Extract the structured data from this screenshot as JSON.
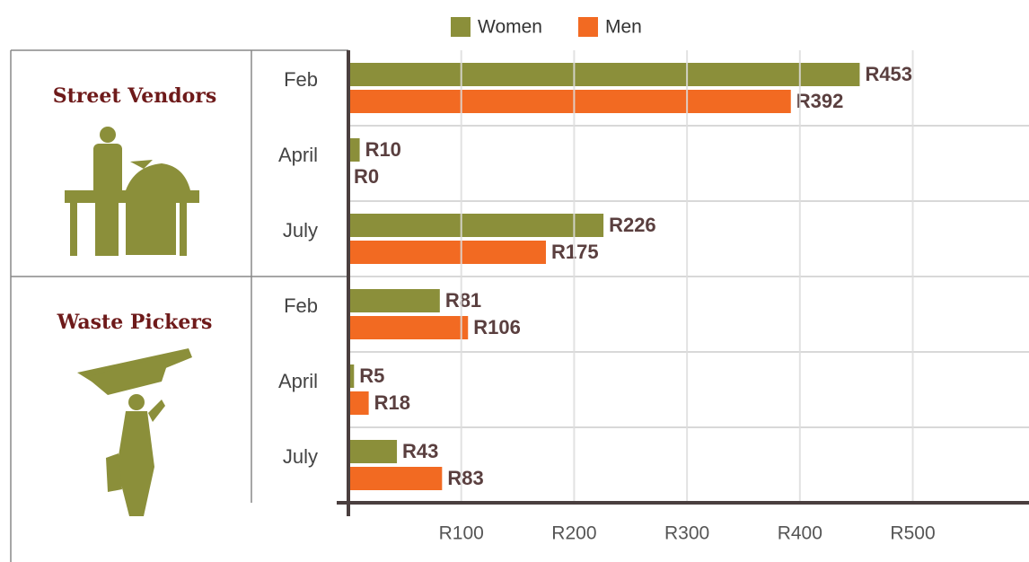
{
  "chart_data": {
    "type": "bar",
    "orientation": "horizontal",
    "groups": [
      {
        "name": "Street Vendors",
        "categories": [
          "Feb",
          "April",
          "July"
        ]
      },
      {
        "name": "Waste Pickers",
        "categories": [
          "Feb",
          "April",
          "July"
        ]
      }
    ],
    "series": [
      {
        "name": "Women",
        "color": "#8b8f3a",
        "values": [
          453,
          10,
          226,
          81,
          5,
          43
        ],
        "value_labels": [
          "R453",
          "R10",
          "R226",
          "R81",
          "R5",
          "R43"
        ]
      },
      {
        "name": "Men",
        "color": "#f26a22",
        "values": [
          392,
          0,
          175,
          106,
          18,
          83
        ],
        "value_labels": [
          "R392",
          "R0",
          "R175",
          "R106",
          "R18",
          "R83"
        ]
      }
    ],
    "xlim": [
      0,
      603
    ],
    "xticks": [
      {
        "value": 100,
        "label": "R100"
      },
      {
        "value": 200,
        "label": "R200"
      },
      {
        "value": 300,
        "label": "R300"
      },
      {
        "value": 400,
        "label": "R400"
      },
      {
        "value": 500,
        "label": "R500"
      }
    ],
    "grid": true,
    "legend": "top"
  }
}
